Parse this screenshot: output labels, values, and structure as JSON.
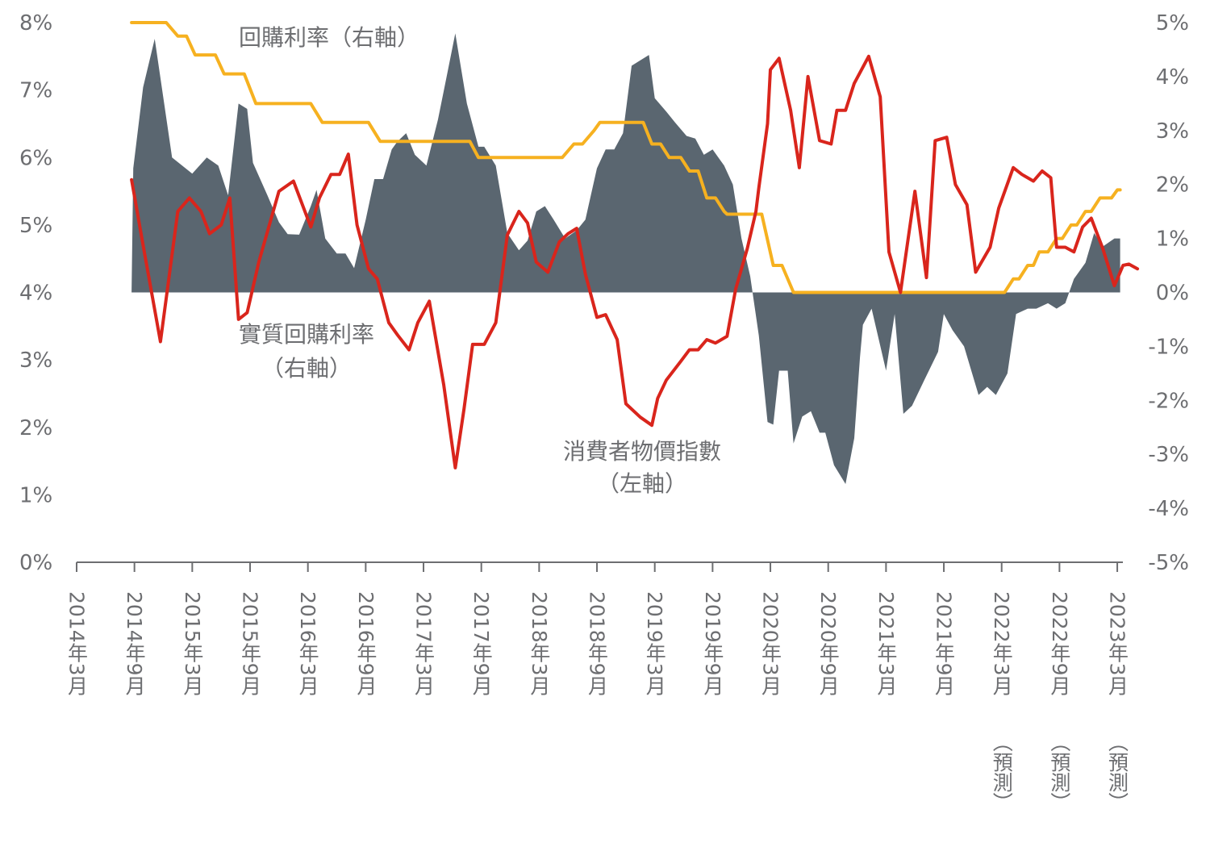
{
  "chart_data": {
    "type": "line",
    "title": "",
    "left_axis": {
      "label": "",
      "ylim": [
        0,
        8
      ],
      "ticks": [
        "0%",
        "1%",
        "2%",
        "3%",
        "4%",
        "5%",
        "6%",
        "7%",
        "8%"
      ]
    },
    "right_axis": {
      "label": "",
      "ylim": [
        -5,
        5
      ],
      "ticks": [
        "-5%",
        "-4%",
        "-3%",
        "-2%",
        "-1%",
        "0%",
        "1%",
        "2%",
        "3%",
        "4%",
        "5%"
      ]
    },
    "x_labels": [
      {
        "period": "2014年3月",
        "note": ""
      },
      {
        "period": "2014年9月",
        "note": ""
      },
      {
        "period": "2015年3月",
        "note": ""
      },
      {
        "period": "2015年9月",
        "note": ""
      },
      {
        "period": "2016年3月",
        "note": ""
      },
      {
        "period": "2016年9月",
        "note": ""
      },
      {
        "period": "2017年3月",
        "note": ""
      },
      {
        "period": "2017年9月",
        "note": ""
      },
      {
        "period": "2018年3月",
        "note": ""
      },
      {
        "period": "2018年9月",
        "note": ""
      },
      {
        "period": "2019年3月",
        "note": ""
      },
      {
        "period": "2019年9月",
        "note": ""
      },
      {
        "period": "2020年3月",
        "note": ""
      },
      {
        "period": "2020年9月",
        "note": ""
      },
      {
        "period": "2021年3月",
        "note": ""
      },
      {
        "period": "2021年9月",
        "note": ""
      },
      {
        "period": "2022年3月",
        "note": "（預測）"
      },
      {
        "period": "2022年9月",
        "note": "（預測）"
      },
      {
        "period": "2023年3月",
        "note": "（預測）"
      }
    ],
    "series": [
      {
        "name": "實質回購利率",
        "axis": "right",
        "style": "area",
        "color": "#5a6670",
        "label": [
          "實質回購利率",
          "（右軸）"
        ],
        "points": [
          [
            0.95,
            0
          ],
          [
            0.98,
            2.3
          ],
          [
            1.15,
            3.8
          ],
          [
            1.35,
            4.7
          ],
          [
            1.65,
            2.5
          ],
          [
            2.0,
            2.2
          ],
          [
            2.25,
            2.5
          ],
          [
            2.45,
            2.35
          ],
          [
            2.62,
            1.8
          ],
          [
            2.8,
            3.5
          ],
          [
            2.95,
            3.4
          ],
          [
            3.05,
            2.4
          ],
          [
            3.3,
            1.8
          ],
          [
            3.5,
            1.3
          ],
          [
            3.65,
            1.08
          ],
          [
            3.85,
            1.07
          ],
          [
            4.05,
            1.6
          ],
          [
            4.15,
            1.9
          ],
          [
            4.3,
            1.0
          ],
          [
            4.5,
            0.72
          ],
          [
            4.65,
            0.72
          ],
          [
            4.8,
            0.45
          ],
          [
            5.0,
            1.35
          ],
          [
            5.15,
            2.1
          ],
          [
            5.3,
            2.1
          ],
          [
            5.45,
            2.65
          ],
          [
            5.55,
            2.8
          ],
          [
            5.7,
            2.95
          ],
          [
            5.85,
            2.55
          ],
          [
            6.05,
            2.35
          ],
          [
            6.25,
            3.2
          ],
          [
            6.4,
            4.0
          ],
          [
            6.55,
            4.8
          ],
          [
            6.75,
            3.5
          ],
          [
            6.95,
            2.7
          ],
          [
            7.05,
            2.7
          ],
          [
            7.25,
            2.35
          ],
          [
            7.45,
            1.1
          ],
          [
            7.65,
            0.78
          ],
          [
            7.8,
            0.96
          ],
          [
            7.95,
            1.5
          ],
          [
            8.1,
            1.6
          ],
          [
            8.25,
            1.35
          ],
          [
            8.45,
            1.0
          ],
          [
            8.65,
            1.15
          ],
          [
            8.8,
            1.35
          ],
          [
            9.0,
            2.3
          ],
          [
            9.15,
            2.65
          ],
          [
            9.3,
            2.65
          ],
          [
            9.45,
            2.95
          ],
          [
            9.6,
            4.2
          ],
          [
            9.75,
            4.3
          ],
          [
            9.9,
            4.4
          ],
          [
            10.0,
            3.6
          ],
          [
            10.2,
            3.35
          ],
          [
            10.35,
            3.15
          ],
          [
            10.55,
            2.9
          ],
          [
            10.7,
            2.85
          ],
          [
            10.85,
            2.55
          ],
          [
            11.0,
            2.65
          ],
          [
            11.2,
            2.35
          ],
          [
            11.35,
            2.0
          ],
          [
            11.5,
            1.0
          ],
          [
            11.65,
            0.3
          ],
          [
            11.8,
            -0.8
          ],
          [
            11.95,
            -2.4
          ],
          [
            12.05,
            -2.45
          ],
          [
            12.15,
            -1.45
          ],
          [
            12.3,
            -1.45
          ],
          [
            12.4,
            -2.8
          ],
          [
            12.55,
            -2.3
          ],
          [
            12.7,
            -2.2
          ],
          [
            12.85,
            -2.6
          ],
          [
            12.95,
            -2.6
          ],
          [
            13.1,
            -3.2
          ],
          [
            13.3,
            -3.55
          ],
          [
            13.45,
            -2.7
          ],
          [
            13.55,
            -1.2
          ],
          [
            13.6,
            -0.6
          ],
          [
            13.75,
            -0.3
          ],
          [
            14.0,
            -1.45
          ],
          [
            14.15,
            -0.4
          ],
          [
            14.3,
            -2.25
          ],
          [
            14.45,
            -2.1
          ],
          [
            14.65,
            -1.65
          ],
          [
            14.9,
            -1.1
          ],
          [
            15.0,
            -0.4
          ],
          [
            15.15,
            -0.7
          ],
          [
            15.35,
            -1.0
          ],
          [
            15.6,
            -1.9
          ],
          [
            15.75,
            -1.75
          ],
          [
            15.9,
            -1.9
          ],
          [
            16.1,
            -1.5
          ],
          [
            16.25,
            -0.4
          ],
          [
            16.45,
            -0.3
          ],
          [
            16.6,
            -0.3
          ],
          [
            16.8,
            -0.2
          ],
          [
            16.95,
            -0.3
          ],
          [
            17.1,
            -0.2
          ],
          [
            17.25,
            0.25
          ],
          [
            17.45,
            0.55
          ],
          [
            17.6,
            1.1
          ],
          [
            17.75,
            0.85
          ],
          [
            17.95,
            1.0
          ],
          [
            18.05,
            1.0
          ],
          [
            18.05,
            0
          ]
        ]
      },
      {
        "name": "回購利率",
        "axis": "right",
        "style": "step-line",
        "color": "#f6b120",
        "label": [
          "回購利率（右軸）"
        ],
        "points": [
          [
            0.95,
            5.0
          ],
          [
            1.55,
            5.0
          ],
          [
            1.75,
            4.75
          ],
          [
            1.9,
            4.75
          ],
          [
            2.05,
            4.4
          ],
          [
            2.4,
            4.4
          ],
          [
            2.55,
            4.05
          ],
          [
            2.9,
            4.05
          ],
          [
            3.1,
            3.5
          ],
          [
            4.05,
            3.5
          ],
          [
            4.25,
            3.15
          ],
          [
            5.05,
            3.15
          ],
          [
            5.25,
            2.8
          ],
          [
            6.8,
            2.8
          ],
          [
            6.95,
            2.5
          ],
          [
            8.4,
            2.5
          ],
          [
            8.6,
            2.75
          ],
          [
            8.75,
            2.75
          ],
          [
            8.95,
            3.0
          ],
          [
            9.05,
            3.15
          ],
          [
            9.8,
            3.15
          ],
          [
            9.95,
            2.75
          ],
          [
            10.1,
            2.75
          ],
          [
            10.25,
            2.5
          ],
          [
            10.45,
            2.5
          ],
          [
            10.6,
            2.25
          ],
          [
            10.75,
            2.25
          ],
          [
            10.9,
            1.75
          ],
          [
            11.05,
            1.75
          ],
          [
            11.2,
            1.5
          ],
          [
            11.25,
            1.45
          ],
          [
            11.85,
            1.45
          ],
          [
            12.05,
            0.5
          ],
          [
            12.2,
            0.5
          ],
          [
            12.4,
            0.0
          ],
          [
            16.05,
            0.0
          ],
          [
            16.2,
            0.25
          ],
          [
            16.3,
            0.25
          ],
          [
            16.45,
            0.5
          ],
          [
            16.55,
            0.5
          ],
          [
            16.65,
            0.75
          ],
          [
            16.8,
            0.75
          ],
          [
            16.95,
            1.0
          ],
          [
            17.05,
            1.0
          ],
          [
            17.2,
            1.25
          ],
          [
            17.3,
            1.25
          ],
          [
            17.45,
            1.5
          ],
          [
            17.55,
            1.5
          ],
          [
            17.7,
            1.75
          ],
          [
            17.85,
            1.75
          ],
          [
            17.9,
            1.75
          ],
          [
            18.0,
            1.9
          ],
          [
            18.05,
            1.9
          ]
        ]
      },
      {
        "name": "消費者物價指數",
        "axis": "left",
        "style": "line",
        "color": "#d9251c",
        "label": [
          "消費者物價指數",
          "（左軸）"
        ],
        "points": [
          [
            0.95,
            5.67
          ],
          [
            1.15,
            4.7
          ],
          [
            1.45,
            3.27
          ],
          [
            1.75,
            5.2
          ],
          [
            1.95,
            5.4
          ],
          [
            2.15,
            5.2
          ],
          [
            2.3,
            4.87
          ],
          [
            2.5,
            5.0
          ],
          [
            2.65,
            5.4
          ],
          [
            2.8,
            3.6
          ],
          [
            2.95,
            3.7
          ],
          [
            3.15,
            4.45
          ],
          [
            3.35,
            5.05
          ],
          [
            3.5,
            5.5
          ],
          [
            3.75,
            5.65
          ],
          [
            4.05,
            4.97
          ],
          [
            4.2,
            5.4
          ],
          [
            4.4,
            5.75
          ],
          [
            4.55,
            5.75
          ],
          [
            4.7,
            6.05
          ],
          [
            4.85,
            5.0
          ],
          [
            5.05,
            4.35
          ],
          [
            5.2,
            4.2
          ],
          [
            5.4,
            3.55
          ],
          [
            5.55,
            3.37
          ],
          [
            5.75,
            3.15
          ],
          [
            5.9,
            3.55
          ],
          [
            6.1,
            3.87
          ],
          [
            6.35,
            2.63
          ],
          [
            6.55,
            1.4
          ],
          [
            6.7,
            2.27
          ],
          [
            6.85,
            3.23
          ],
          [
            7.05,
            3.23
          ],
          [
            7.25,
            3.55
          ],
          [
            7.45,
            4.85
          ],
          [
            7.65,
            5.2
          ],
          [
            7.8,
            5.03
          ],
          [
            7.95,
            4.45
          ],
          [
            8.15,
            4.3
          ],
          [
            8.35,
            4.75
          ],
          [
            8.5,
            4.87
          ],
          [
            8.65,
            4.95
          ],
          [
            8.8,
            4.27
          ],
          [
            9.0,
            3.63
          ],
          [
            9.15,
            3.67
          ],
          [
            9.35,
            3.3
          ],
          [
            9.5,
            2.35
          ],
          [
            9.75,
            2.15
          ],
          [
            9.95,
            2.03
          ],
          [
            10.05,
            2.43
          ],
          [
            10.2,
            2.7
          ],
          [
            10.45,
            2.98
          ],
          [
            10.6,
            3.15
          ],
          [
            10.75,
            3.15
          ],
          [
            10.9,
            3.3
          ],
          [
            11.05,
            3.25
          ],
          [
            11.25,
            3.35
          ],
          [
            11.4,
            4.05
          ],
          [
            11.6,
            4.65
          ],
          [
            11.75,
            5.2
          ],
          [
            11.8,
            5.55
          ],
          [
            11.95,
            6.5
          ],
          [
            12.0,
            7.3
          ],
          [
            12.15,
            7.47
          ],
          [
            12.35,
            6.7
          ],
          [
            12.5,
            5.85
          ],
          [
            12.65,
            7.2
          ],
          [
            12.85,
            6.25
          ],
          [
            13.05,
            6.2
          ],
          [
            13.15,
            6.7
          ],
          [
            13.3,
            6.7
          ],
          [
            13.45,
            7.1
          ],
          [
            13.7,
            7.5
          ],
          [
            13.9,
            6.9
          ],
          [
            14.05,
            4.6
          ],
          [
            14.25,
            4.0
          ],
          [
            14.5,
            5.5
          ],
          [
            14.7,
            4.22
          ],
          [
            14.85,
            6.25
          ],
          [
            15.05,
            6.3
          ],
          [
            15.2,
            5.6
          ],
          [
            15.4,
            5.3
          ],
          [
            15.55,
            4.3
          ],
          [
            15.8,
            4.67
          ],
          [
            15.95,
            5.25
          ],
          [
            16.2,
            5.85
          ],
          [
            16.35,
            5.75
          ],
          [
            16.55,
            5.65
          ],
          [
            16.7,
            5.8
          ],
          [
            16.85,
            5.7
          ],
          [
            16.95,
            4.67
          ],
          [
            17.1,
            4.67
          ],
          [
            17.25,
            4.6
          ],
          [
            17.4,
            4.97
          ],
          [
            17.55,
            5.1
          ],
          [
            17.75,
            4.65
          ],
          [
            17.95,
            4.1
          ],
          [
            18.1,
            4.4
          ],
          [
            18.2,
            4.42
          ],
          [
            18.35,
            4.35
          ]
        ]
      }
    ]
  }
}
